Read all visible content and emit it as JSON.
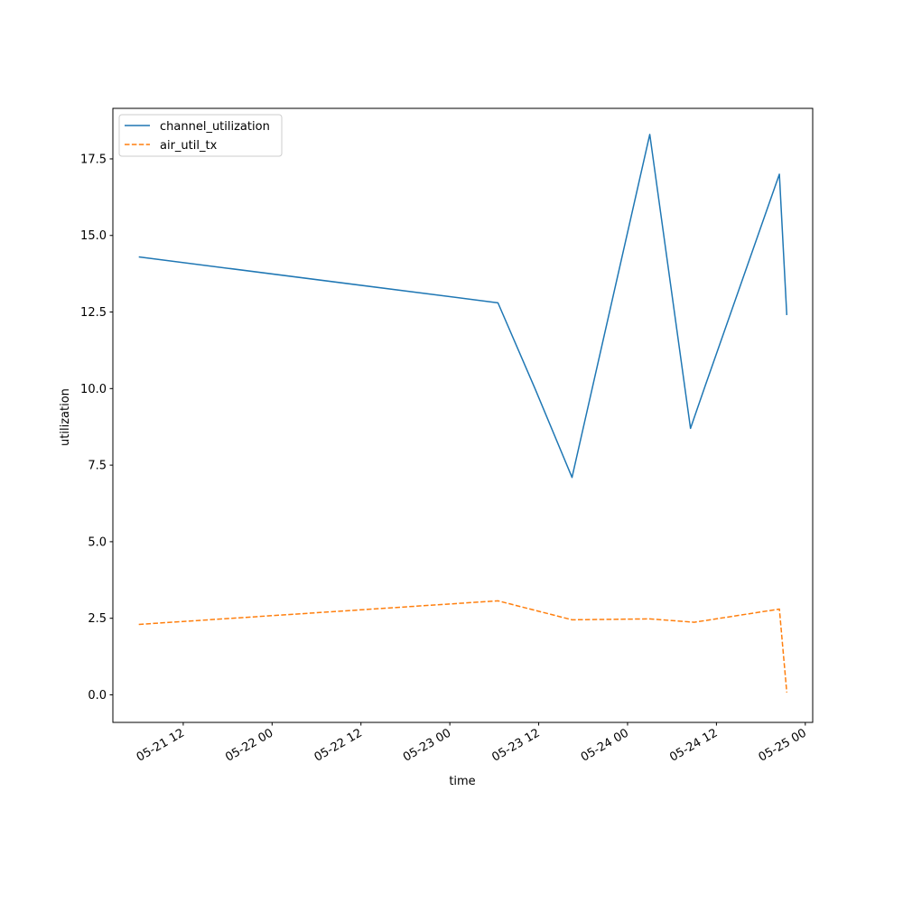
{
  "chart_data": {
    "type": "line",
    "title": "",
    "xlabel": "time",
    "ylabel": "utilization",
    "x_ticks": [
      {
        "label": "05-21 12",
        "value": "2024-05-21T12:00"
      },
      {
        "label": "05-22 00",
        "value": "2024-05-22T00:00"
      },
      {
        "label": "05-22 12",
        "value": "2024-05-22T12:00"
      },
      {
        "label": "05-23 00",
        "value": "2024-05-23T00:00"
      },
      {
        "label": "05-23 12",
        "value": "2024-05-23T12:00"
      },
      {
        "label": "05-24 00",
        "value": "2024-05-24T00:00"
      },
      {
        "label": "05-24 12",
        "value": "2024-05-24T12:00"
      },
      {
        "label": "05-25 00",
        "value": "2024-05-25T00:00"
      }
    ],
    "y_ticks": [
      "0.0",
      "2.5",
      "5.0",
      "7.5",
      "10.0",
      "12.5",
      "15.0",
      "17.5"
    ],
    "xlim": [
      "2024-05-21T02:30",
      "2024-05-25T01:00"
    ],
    "ylim": [
      -0.9,
      19.15
    ],
    "legend_position": "upper-left",
    "grid": false,
    "series": [
      {
        "name": "channel_utilization",
        "color": "#1f77b4",
        "style": "solid",
        "points": [
          {
            "x": "2024-05-21T06:00",
            "y": 14.3
          },
          {
            "x": "2024-05-23T06:30",
            "y": 12.8
          },
          {
            "x": "2024-05-23T11:30",
            "y": 10.0
          },
          {
            "x": "2024-05-23T16:30",
            "y": 7.1
          },
          {
            "x": "2024-05-24T03:00",
            "y": 18.3
          },
          {
            "x": "2024-05-24T08:30",
            "y": 8.7
          },
          {
            "x": "2024-05-24T10:30",
            "y": 10.1
          },
          {
            "x": "2024-05-24T20:30",
            "y": 17.0
          },
          {
            "x": "2024-05-24T21:30",
            "y": 12.4
          }
        ]
      },
      {
        "name": "air_util_tx",
        "color": "#ff7f0e",
        "style": "dashed",
        "points": [
          {
            "x": "2024-05-21T06:00",
            "y": 2.3
          },
          {
            "x": "2024-05-23T06:30",
            "y": 3.07
          },
          {
            "x": "2024-05-23T16:30",
            "y": 2.45
          },
          {
            "x": "2024-05-24T03:00",
            "y": 2.48
          },
          {
            "x": "2024-05-24T09:00",
            "y": 2.37
          },
          {
            "x": "2024-05-24T20:30",
            "y": 2.8
          },
          {
            "x": "2024-05-24T21:30",
            "y": 0.08
          }
        ]
      }
    ]
  }
}
